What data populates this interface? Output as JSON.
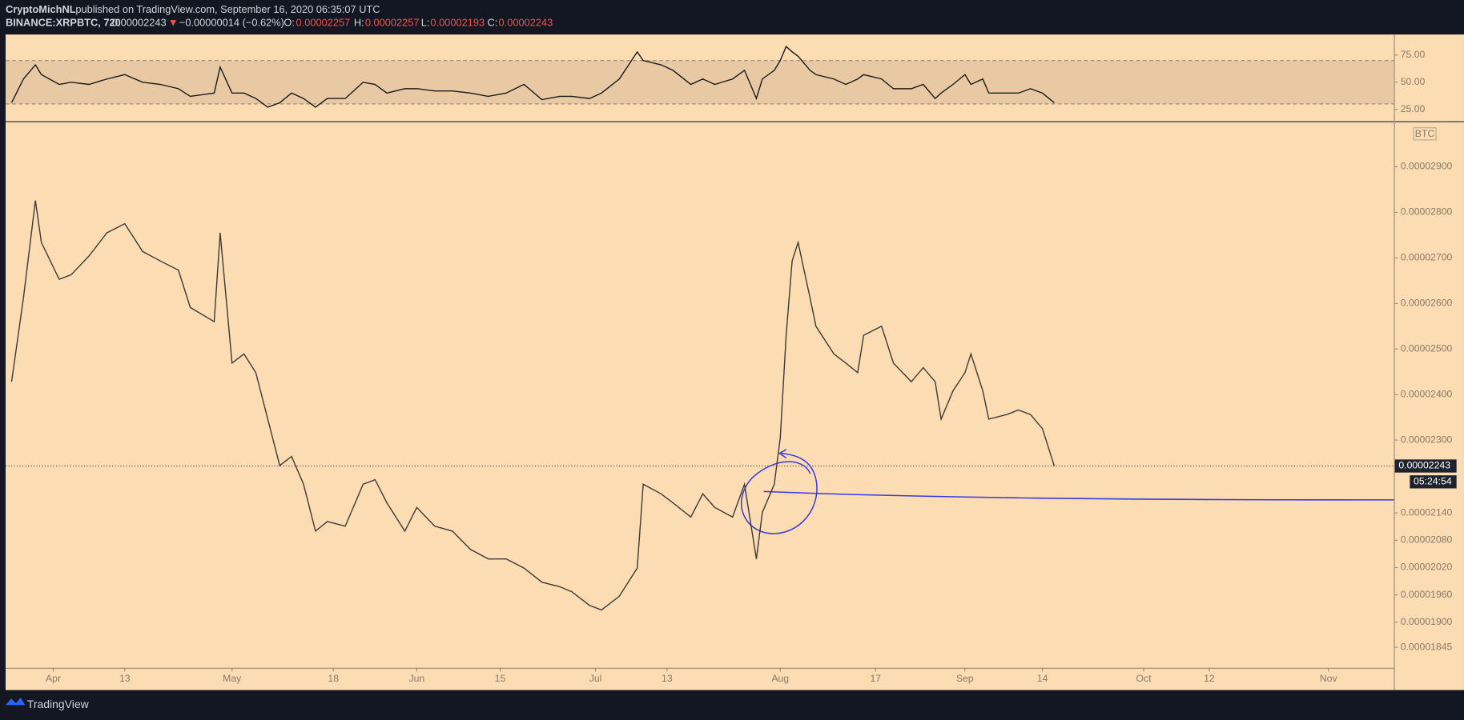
{
  "header": {
    "author": "CryptoMichNL",
    "published": "published on TradingView.com, September 16, 2020 06:35:07 UTC",
    "symbol": "BINANCE:XRPBTC, 720",
    "last": "0.00002243",
    "direction": "▼",
    "change": "−0.00000014 (−0.62%)",
    "open_label": "O:",
    "open": "0.00002257",
    "high_label": "H:",
    "high": "0.00002257",
    "low_label": "L:",
    "low": "0.00002193",
    "close_label": "C:",
    "close": "0.00002243"
  },
  "footer": {
    "brand": "TradingView"
  },
  "chart_data": [
    {
      "type": "line",
      "name": "price",
      "x": [
        "2020-03-25",
        "2020-03-27",
        "2020-03-29",
        "2020-03-30",
        "2020-04-02",
        "2020-04-04",
        "2020-04-07",
        "2020-04-10",
        "2020-04-13",
        "2020-04-16",
        "2020-04-19",
        "2020-04-22",
        "2020-04-24",
        "2020-04-28",
        "2020-04-29",
        "2020-05-01",
        "2020-05-03",
        "2020-05-05",
        "2020-05-07",
        "2020-05-09",
        "2020-05-11",
        "2020-05-13",
        "2020-05-15",
        "2020-05-17",
        "2020-05-20",
        "2020-05-23",
        "2020-05-25",
        "2020-05-27",
        "2020-05-30",
        "2020-06-01",
        "2020-06-04",
        "2020-06-07",
        "2020-06-10",
        "2020-06-13",
        "2020-06-16",
        "2020-06-19",
        "2020-06-22",
        "2020-06-25",
        "2020-06-27",
        "2020-06-30",
        "2020-07-02",
        "2020-07-05",
        "2020-07-08",
        "2020-07-09",
        "2020-07-12",
        "2020-07-14",
        "2020-07-17",
        "2020-07-19",
        "2020-07-21",
        "2020-07-24",
        "2020-07-26",
        "2020-07-28",
        "2020-07-29",
        "2020-07-31",
        "2020-08-01",
        "2020-08-02",
        "2020-08-03",
        "2020-08-04",
        "2020-08-06",
        "2020-08-07",
        "2020-08-10",
        "2020-08-12",
        "2020-08-14",
        "2020-08-15",
        "2020-08-18",
        "2020-08-20",
        "2020-08-23",
        "2020-08-25",
        "2020-08-27",
        "2020-08-28",
        "2020-08-30",
        "2020-09-01",
        "2020-09-02",
        "2020-09-04",
        "2020-09-05",
        "2020-09-08",
        "2020-09-10",
        "2020-09-12",
        "2020-09-14",
        "2020-09-16"
      ],
      "series": [
        {
          "name": "XRPBTC",
          "color": "#3d3a36",
          "values": [
            2.428e-05,
            2.612e-05,
            2.826e-05,
            2.734e-05,
            2.653e-05,
            2.663e-05,
            2.704e-05,
            2.755e-05,
            2.775e-05,
            2.714e-05,
            2.693e-05,
            2.673e-05,
            2.591e-05,
            2.56e-05,
            2.755e-05,
            2.469e-05,
            2.489e-05,
            2.448e-05,
            2.346e-05,
            2.244e-05,
            2.264e-05,
            2.203e-05,
            2.1e-05,
            2.121e-05,
            2.111e-05,
            2.203e-05,
            2.213e-05,
            2.162e-05,
            2.1e-05,
            2.152e-05,
            2.111e-05,
            2.1e-05,
            2.06e-05,
            2.039e-05,
            2.039e-05,
            2.019e-05,
            1.988e-05,
            1.978e-05,
            1.967e-05,
            1.937e-05,
            1.927e-05,
            1.957e-05,
            2.019e-05,
            2.203e-05,
            2.182e-05,
            2.162e-05,
            2.131e-05,
            2.182e-05,
            2.152e-05,
            2.131e-05,
            2.203e-05,
            2.039e-05,
            2.141e-05,
            2.203e-05,
            2.305e-05,
            2.53e-05,
            2.693e-05,
            2.734e-05,
            2.612e-05,
            2.55e-05,
            2.489e-05,
            2.469e-05,
            2.448e-05,
            2.53e-05,
            2.55e-05,
            2.469e-05,
            2.428e-05,
            2.459e-05,
            2.428e-05,
            2.346e-05,
            2.408e-05,
            2.448e-05,
            2.489e-05,
            2.408e-05,
            2.346e-05,
            2.356e-05,
            2.366e-05,
            2.356e-05,
            2.325e-05,
            2.243e-05
          ]
        }
      ],
      "xlim": [
        "2020-03-24",
        "2020-11-12"
      ],
      "xticks": [
        {
          "value": "2020-04-01",
          "label": "Apr"
        },
        {
          "value": "2020-04-13",
          "label": "13"
        },
        {
          "value": "2020-05-01",
          "label": "May"
        },
        {
          "value": "2020-05-18",
          "label": "18"
        },
        {
          "value": "2020-06-01",
          "label": "Jun"
        },
        {
          "value": "2020-06-15",
          "label": "15"
        },
        {
          "value": "2020-07-01",
          "label": "Jul"
        },
        {
          "value": "2020-07-13",
          "label": "13"
        },
        {
          "value": "2020-08-01",
          "label": "Aug"
        },
        {
          "value": "2020-08-17",
          "label": "17"
        },
        {
          "value": "2020-09-01",
          "label": "Sep"
        },
        {
          "value": "2020-09-14",
          "label": "14"
        },
        {
          "value": "2020-10-01",
          "label": "Oct"
        },
        {
          "value": "2020-10-12",
          "label": "12"
        },
        {
          "value": "2020-11-01",
          "label": "Nov"
        }
      ],
      "ylim": [
        1.8e-05,
        3e-05
      ],
      "yticks": [
        {
          "value": 2.9e-05,
          "label": "0.00002900"
        },
        {
          "value": 2.8e-05,
          "label": "0.00002800"
        },
        {
          "value": 2.7e-05,
          "label": "0.00002700"
        },
        {
          "value": 2.6e-05,
          "label": "0.00002600"
        },
        {
          "value": 2.5e-05,
          "label": "0.00002500"
        },
        {
          "value": 2.4e-05,
          "label": "0.00002400"
        },
        {
          "value": 2.3e-05,
          "label": "0.00002300"
        },
        {
          "value": 2.14e-05,
          "label": "0.00002140"
        },
        {
          "value": 2.08e-05,
          "label": "0.00002080"
        },
        {
          "value": 2.02e-05,
          "label": "0.00002020"
        },
        {
          "value": 1.96e-05,
          "label": "0.00001960"
        },
        {
          "value": 1.9e-05,
          "label": "0.00001900"
        },
        {
          "value": 1.845e-05,
          "label": "0.00001845"
        }
      ],
      "currency": "BTC",
      "price_label": "0.00002243",
      "countdown": "05:24:54"
    },
    {
      "type": "line",
      "name": "rsi",
      "series": [
        {
          "name": "RSI",
          "color": "#1a1a1a",
          "values": [
            31,
            53,
            66,
            57,
            48,
            50,
            48,
            53,
            57,
            50,
            48,
            44,
            37,
            40,
            64,
            40,
            40,
            35,
            27,
            31,
            40,
            35,
            27,
            35,
            35,
            50,
            48,
            40,
            44,
            44,
            42,
            42,
            40,
            37,
            40,
            48,
            34,
            37,
            37,
            35,
            40,
            53,
            78,
            70,
            66,
            61,
            48,
            53,
            48,
            53,
            61,
            35,
            53,
            61,
            70,
            83,
            78,
            74,
            61,
            57,
            53,
            48,
            53,
            57,
            53,
            44,
            44,
            48,
            35,
            40,
            48,
            57,
            48,
            53,
            40,
            40,
            40,
            44,
            40,
            31
          ]
        }
      ],
      "ylim": [
        14,
        94
      ],
      "yticks": [
        {
          "value": 75,
          "label": "75.00"
        },
        {
          "value": 50,
          "label": "50.00"
        },
        {
          "value": 25,
          "label": "25.00"
        }
      ],
      "band": [
        30,
        70
      ]
    }
  ]
}
